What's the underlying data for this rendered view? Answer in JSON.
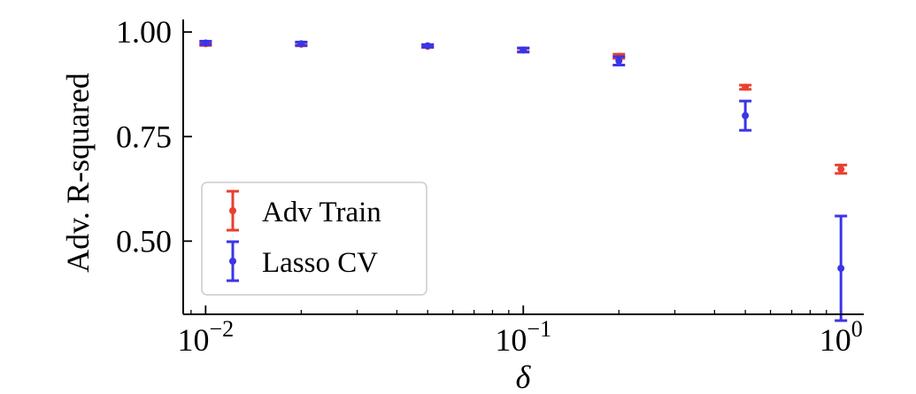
{
  "chart_data": {
    "type": "scatter",
    "title": "",
    "xlabel": "δ",
    "ylabel": "Adv. R-squared",
    "x_scale": "log",
    "xlim": [
      0.0085,
      1.18
    ],
    "ylim": [
      0.325,
      1.03
    ],
    "x_ticks": [
      {
        "value": 0.01,
        "base": "10",
        "exp": "−2"
      },
      {
        "value": 0.1,
        "base": "10",
        "exp": "−1"
      },
      {
        "value": 1,
        "base": "10",
        "exp": "0"
      }
    ],
    "y_ticks": [
      {
        "value": 1.0,
        "label": "1.00"
      },
      {
        "value": 0.75,
        "label": "0.75"
      },
      {
        "value": 0.5,
        "label": "0.50"
      }
    ],
    "grid": false,
    "legend_position": "lower-left",
    "series": [
      {
        "name": "Adv Train",
        "color": "#e8402f",
        "points": [
          {
            "x": 0.01,
            "y": 0.972,
            "err": 0.004
          },
          {
            "x": 0.02,
            "y": 0.971,
            "err": 0.004
          },
          {
            "x": 0.05,
            "y": 0.966,
            "err": 0.003
          },
          {
            "x": 0.1,
            "y": 0.957,
            "err": 0.004
          },
          {
            "x": 0.2,
            "y": 0.942,
            "err": 0.005
          },
          {
            "x": 0.5,
            "y": 0.868,
            "err": 0.005
          },
          {
            "x": 1,
            "y": 0.672,
            "err": 0.01
          }
        ]
      },
      {
        "name": "Lasso CV",
        "color": "#3b35e6",
        "points": [
          {
            "x": 0.01,
            "y": 0.974,
            "err": 0.004
          },
          {
            "x": 0.02,
            "y": 0.972,
            "err": 0.004
          },
          {
            "x": 0.05,
            "y": 0.967,
            "err": 0.003
          },
          {
            "x": 0.1,
            "y": 0.957,
            "err": 0.005
          },
          {
            "x": 0.2,
            "y": 0.931,
            "err": 0.01
          },
          {
            "x": 0.5,
            "y": 0.8,
            "err": 0.035
          },
          {
            "x": 1,
            "y": 0.435,
            "err": 0.125
          }
        ]
      }
    ]
  }
}
